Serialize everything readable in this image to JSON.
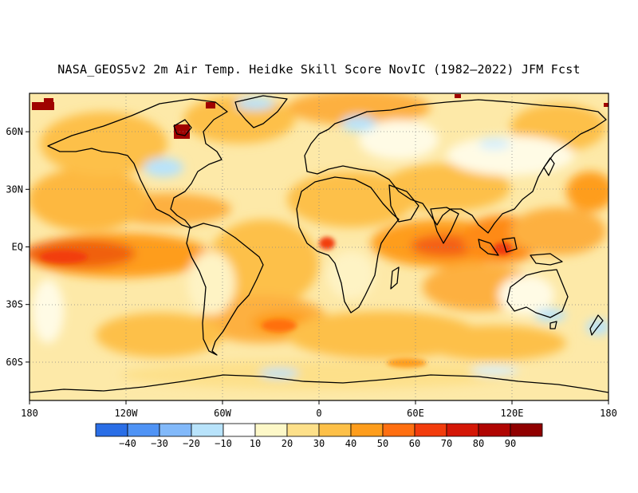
{
  "title": "NASA_GEOS5v2 2m Air Temp. Heidke Skill Score NovIC (1982–2022) JFM Fcst",
  "map": {
    "lon_range": [
      -180,
      180
    ],
    "lat_range": [
      -80,
      80
    ],
    "grid": true,
    "x_ticks": [
      {
        "label": "180",
        "lon": -180
      },
      {
        "label": "120W",
        "lon": -120
      },
      {
        "label": "60W",
        "lon": -60
      },
      {
        "label": "0",
        "lon": 0
      },
      {
        "label": "60E",
        "lon": 60
      },
      {
        "label": "120E",
        "lon": 120
      },
      {
        "label": "180",
        "lon": 180
      }
    ],
    "y_ticks": [
      {
        "label": "60N",
        "lat": 60
      },
      {
        "label": "30N",
        "lat": 30
      },
      {
        "label": "EQ",
        "lat": 0
      },
      {
        "label": "30S",
        "lat": -30
      },
      {
        "label": "60S",
        "lat": -60
      }
    ]
  },
  "colorbar": {
    "colors": [
      "#2a6ee6",
      "#4f93f5",
      "#82b9fa",
      "#b8e3fb",
      "#ffffff",
      "#fdf8c8",
      "#fde08a",
      "#fdc048",
      "#fe9d1c",
      "#ff6f11",
      "#f23c0c",
      "#d41706",
      "#b00502",
      "#900000"
    ],
    "labels": [
      "−40",
      "−30",
      "−20",
      "−10",
      "10",
      "20",
      "30",
      "40",
      "50",
      "60",
      "70",
      "80",
      "90"
    ]
  }
}
